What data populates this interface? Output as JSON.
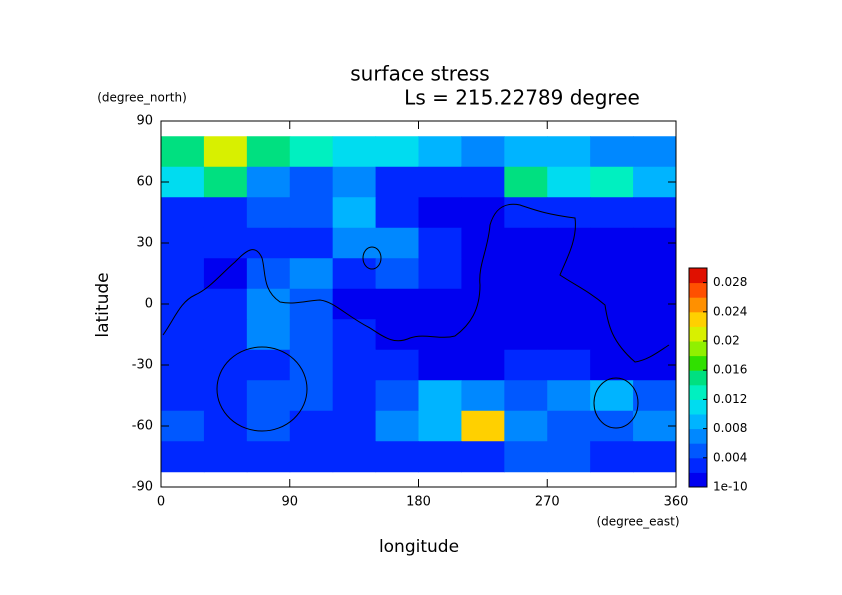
{
  "chart_data": {
    "type": "contour",
    "title": "surface stress",
    "subtitle": "Ls = 215.22789 degree",
    "x_label": "longitude",
    "x_unit": "(degree_east)",
    "y_label": "latitude",
    "y_unit": "(degree_north)",
    "x": [
      15,
      45,
      75,
      105,
      135,
      165,
      195,
      225,
      255,
      285,
      315,
      345
    ],
    "y": [
      75,
      60,
      45,
      30,
      15,
      0,
      -15,
      -30,
      -45,
      -60,
      -75
    ],
    "z": [
      [
        0.016,
        0.022,
        0.016,
        0.014,
        0.012,
        0.012,
        0.01,
        0.008,
        0.01,
        0.01,
        0.008,
        0.008
      ],
      [
        0.012,
        0.016,
        0.008,
        0.006,
        0.008,
        0.004,
        0.004,
        0.004,
        0.016,
        0.012,
        0.014,
        0.01
      ],
      [
        0.004,
        0.004,
        0.006,
        0.006,
        0.01,
        0.004,
        0.002,
        0.002,
        0.004,
        0.004,
        0.004,
        0.004
      ],
      [
        0.004,
        0.004,
        0.004,
        0.004,
        0.008,
        0.008,
        0.004,
        0.002,
        0.002,
        0.002,
        0.002,
        0.002
      ],
      [
        0.004,
        0.002,
        0.006,
        0.008,
        0.004,
        0.006,
        0.004,
        0.002,
        0.002,
        0.002,
        0.002,
        0.002
      ],
      [
        0.004,
        0.004,
        0.008,
        0.006,
        0.002,
        0.002,
        0.002,
        0.002,
        0.002,
        0.002,
        0.002,
        0.002
      ],
      [
        0.004,
        0.004,
        0.008,
        0.006,
        0.004,
        0.002,
        0.002,
        0.002,
        0.002,
        0.002,
        0.002,
        0.002
      ],
      [
        0.004,
        0.004,
        0.004,
        0.006,
        0.004,
        0.004,
        0.002,
        0.002,
        0.004,
        0.004,
        0.002,
        0.002
      ],
      [
        0.004,
        0.004,
        0.006,
        0.006,
        0.004,
        0.006,
        0.01,
        0.008,
        0.006,
        0.008,
        0.01,
        0.006
      ],
      [
        0.006,
        0.004,
        0.006,
        0.004,
        0.004,
        0.008,
        0.01,
        0.024,
        0.008,
        0.006,
        0.006,
        0.008
      ],
      [
        0.004,
        0.004,
        0.004,
        0.004,
        0.004,
        0.004,
        0.004,
        0.004,
        0.006,
        0.006,
        0.004,
        0.004
      ]
    ],
    "xlim": [
      0,
      360
    ],
    "xticks": [
      0,
      90,
      180,
      270,
      360
    ],
    "ylim": [
      -90,
      90
    ],
    "yticks": [
      -90,
      -60,
      -30,
      0,
      30,
      60,
      90
    ],
    "colorbar": {
      "lim": [
        1e-10,
        0.03
      ],
      "ticks": [
        1e-10,
        0.004,
        0.008,
        0.012,
        0.016,
        0.02,
        0.024,
        0.028
      ],
      "colors": [
        "#0000f0",
        "#0028ff",
        "#0058ff",
        "#0088ff",
        "#00b4ff",
        "#00dcf0",
        "#00f0c0",
        "#00e080",
        "#30e000",
        "#90f000",
        "#d8f000",
        "#ffd000",
        "#ff9000",
        "#ff5000",
        "#e01000"
      ]
    }
  }
}
